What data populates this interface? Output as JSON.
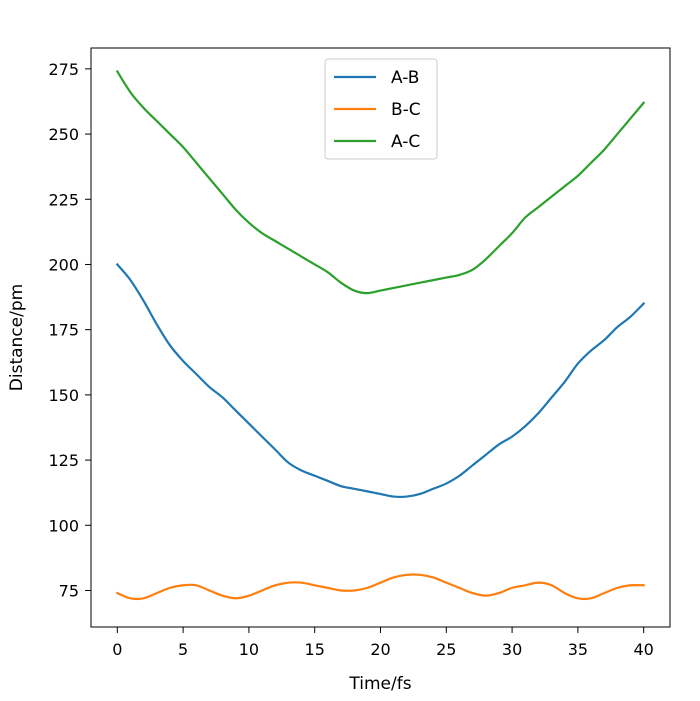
{
  "chart_data": {
    "type": "line",
    "title": "",
    "xlabel": "Time/fs",
    "ylabel": "Distance/pm",
    "xlim": [
      -2,
      42
    ],
    "ylim": [
      61,
      283
    ],
    "xticks": [
      0,
      5,
      10,
      15,
      20,
      25,
      30,
      35,
      40
    ],
    "yticks": [
      75,
      100,
      125,
      150,
      175,
      200,
      225,
      250,
      275
    ],
    "grid": false,
    "legend_position": "upper-center",
    "series": [
      {
        "name": "A-B",
        "color": "#1f77b4",
        "x": [
          0,
          1,
          2,
          3,
          4,
          5,
          6,
          7,
          8,
          9,
          10,
          11,
          12,
          13,
          14,
          15,
          16,
          17,
          18,
          19,
          20,
          21,
          22,
          23,
          24,
          25,
          26,
          27,
          28,
          29,
          30,
          31,
          32,
          33,
          34,
          35,
          36,
          37,
          38,
          39,
          40
        ],
        "y": [
          200,
          194,
          186,
          177,
          169,
          163,
          158,
          153,
          149,
          144,
          139,
          134,
          129,
          124,
          121,
          119,
          117,
          115,
          114,
          113,
          112,
          111,
          111,
          112,
          114,
          116,
          119,
          123,
          127,
          131,
          134,
          138,
          143,
          149,
          155,
          162,
          167,
          171,
          176,
          180,
          185
        ]
      },
      {
        "name": "B-C",
        "color": "#ff7f0e",
        "x": [
          0,
          1,
          2,
          3,
          4,
          5,
          6,
          7,
          8,
          9,
          10,
          11,
          12,
          13,
          14,
          15,
          16,
          17,
          18,
          19,
          20,
          21,
          22,
          23,
          24,
          25,
          26,
          27,
          28,
          29,
          30,
          31,
          32,
          33,
          34,
          35,
          36,
          37,
          38,
          39,
          40
        ],
        "y": [
          74,
          72,
          72,
          74,
          76,
          77,
          77,
          75,
          73,
          72,
          73,
          75,
          77,
          78,
          78,
          77,
          76,
          75,
          75,
          76,
          78,
          80,
          81,
          81,
          80,
          78,
          76,
          74,
          73,
          74,
          76,
          77,
          78,
          77,
          74,
          72,
          72,
          74,
          76,
          77,
          77
        ]
      },
      {
        "name": "A-C",
        "color": "#2ca02c",
        "x": [
          0,
          1,
          2,
          3,
          4,
          5,
          6,
          7,
          8,
          9,
          10,
          11,
          12,
          13,
          14,
          15,
          16,
          17,
          18,
          19,
          20,
          21,
          22,
          23,
          24,
          25,
          26,
          27,
          28,
          29,
          30,
          31,
          32,
          33,
          34,
          35,
          36,
          37,
          38,
          39,
          40
        ],
        "y": [
          274,
          266,
          260,
          255,
          250,
          245,
          239,
          233,
          227,
          221,
          216,
          212,
          209,
          206,
          203,
          200,
          197,
          193,
          190,
          189,
          190,
          191,
          192,
          193,
          194,
          195,
          196,
          198,
          202,
          207,
          212,
          218,
          222,
          226,
          230,
          234,
          239,
          244,
          250,
          256,
          262
        ]
      }
    ]
  }
}
